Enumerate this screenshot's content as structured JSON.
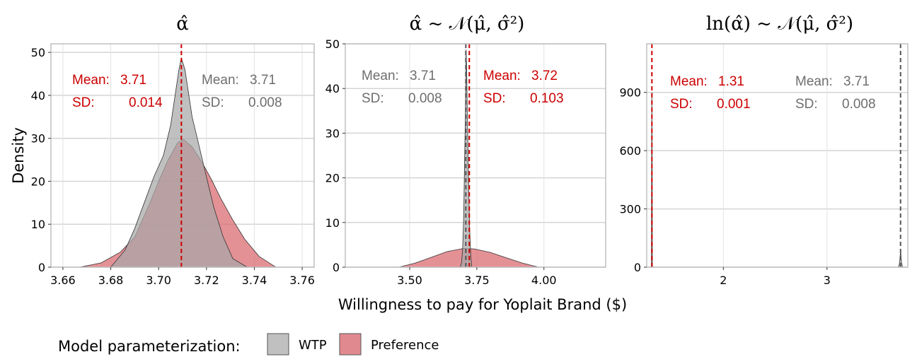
{
  "chart_data": [
    {
      "type": "area",
      "title": "α̂",
      "xlim": [
        3.655,
        3.765
      ],
      "ylim": [
        0,
        52
      ],
      "x_ticks": [
        3.66,
        3.68,
        3.7,
        3.72,
        3.74,
        3.76
      ],
      "x_tick_labels": [
        "3.66",
        "3.68",
        "3.70",
        "3.72",
        "3.74",
        "3.76"
      ],
      "y_ticks": [
        0,
        10,
        20,
        30,
        40,
        50
      ],
      "y_tick_labels": [
        "0",
        "10",
        "20",
        "30",
        "40",
        "50"
      ],
      "ylabel": "Density",
      "series": [
        {
          "name": "Preference",
          "fill": "#d9666e",
          "x": [
            3.667,
            3.676,
            3.684,
            3.69,
            3.696,
            3.7,
            3.704,
            3.708,
            3.7105,
            3.714,
            3.718,
            3.722,
            3.726,
            3.731,
            3.736,
            3.742,
            3.749
          ],
          "y": [
            0,
            1,
            3.5,
            7,
            14.5,
            20,
            25,
            29,
            29.7,
            28,
            24.5,
            20.5,
            16,
            11,
            6.5,
            2.5,
            0
          ],
          "mean_line_x": 3.7095
        },
        {
          "name": "WTP",
          "fill": "#a8a8a8",
          "x": [
            3.68,
            3.686,
            3.69,
            3.694,
            3.698,
            3.702,
            3.705,
            3.7085,
            3.7095,
            3.711,
            3.714,
            3.717,
            3.72,
            3.723,
            3.727,
            3.731,
            3.737
          ],
          "y": [
            0,
            4,
            9,
            15,
            21,
            26,
            33,
            46,
            48.7,
            46,
            35,
            28,
            21,
            14,
            7,
            2,
            0
          ]
        }
      ],
      "annotations": [
        {
          "mean_label": "Mean:",
          "mean_value": "3.71",
          "sd_label": "SD:",
          "sd_value": "0.014",
          "color": "#cc0000"
        },
        {
          "mean_label": "Mean:",
          "mean_value": "3.71",
          "sd_label": "SD:",
          "sd_value": "0.008",
          "color": "#6e6e6e"
        }
      ]
    },
    {
      "type": "area",
      "title": "α̂ ~ 𝒩(μ̂, σ̂²)",
      "xlim": [
        3.26,
        4.23
      ],
      "ylim": [
        0,
        50
      ],
      "x_ticks": [
        3.5,
        3.75,
        4.0
      ],
      "x_tick_labels": [
        "3.50",
        "3.75",
        "4.00"
      ],
      "y_ticks": [
        0,
        10,
        20,
        30,
        40,
        50
      ],
      "y_tick_labels": [
        "0",
        "10",
        "20",
        "30",
        "40",
        "50"
      ],
      "series": [
        {
          "name": "Preference",
          "fill": "#d9666e",
          "x": [
            3.46,
            3.52,
            3.58,
            3.64,
            3.7,
            3.74,
            3.8,
            3.86,
            3.92,
            3.98
          ],
          "y": [
            0,
            0.9,
            2.2,
            3.5,
            4.2,
            4.1,
            3.3,
            2.1,
            0.9,
            0
          ],
          "mean_line_x": 3.722
        },
        {
          "name": "WTP",
          "fill": "#a8a8a8",
          "x": [
            3.688,
            3.693,
            3.697,
            3.701,
            3.704,
            3.707,
            3.709,
            3.71,
            3.712,
            3.715,
            3.719,
            3.723,
            3.727,
            3.731
          ],
          "y": [
            0,
            1,
            4,
            11,
            22,
            33,
            42,
            48.7,
            45,
            33,
            20,
            9,
            3,
            0
          ],
          "mean_line_x": 3.709
        }
      ],
      "annotations": [
        {
          "mean_label": "Mean:",
          "mean_value": "3.71",
          "sd_label": "SD:",
          "sd_value": "0.008",
          "color": "#6e6e6e"
        },
        {
          "mean_label": "Mean:",
          "mean_value": "3.72",
          "sd_label": "SD:",
          "sd_value": "0.103",
          "color": "#cc0000"
        }
      ]
    },
    {
      "type": "area",
      "title": "ln(α̂) ~ 𝒩(μ̂, σ̂²)",
      "xlim": [
        1.26,
        3.78
      ],
      "ylim": [
        0,
        1150
      ],
      "x_ticks": [
        2,
        3
      ],
      "x_tick_labels": [
        "2",
        "3"
      ],
      "y_ticks": [
        0,
        300,
        600,
        900
      ],
      "y_tick_labels": [
        "0",
        "300",
        "600",
        "900"
      ],
      "series": [
        {
          "name": "Preference",
          "fill": "#d9666e",
          "x": [
            1.305,
            1.31,
            1.315
          ],
          "y": [
            0,
            900,
            0
          ],
          "mean_line_x": 1.31
        },
        {
          "name": "WTP",
          "fill": "#a8a8a8",
          "x": [
            3.69,
            3.7,
            3.71,
            3.72,
            3.73
          ],
          "y": [
            0,
            20,
            85,
            20,
            0
          ],
          "mean_line_x": 3.71
        }
      ],
      "annotations": [
        {
          "mean_label": "Mean:",
          "mean_value": "1.31",
          "sd_label": "SD:",
          "sd_value": "0.001",
          "color": "#cc0000"
        },
        {
          "mean_label": "Mean:",
          "mean_value": "3.71",
          "sd_label": "SD:",
          "sd_value": "0.008",
          "color": "#6e6e6e"
        }
      ]
    }
  ],
  "xlabel": "Willingness to pay for Yoplait Brand ($)",
  "legend": {
    "title": "Model parameterization:",
    "items": [
      {
        "label": "WTP",
        "color": "#a8a8a8"
      },
      {
        "label": "Preference",
        "color": "#e08a90"
      }
    ],
    "position": "bottom"
  },
  "colors": {
    "preference": "#d9666e",
    "wtp": "#a8a8a8",
    "mean_pref": "#cc0000",
    "mean_wtp": "#555555",
    "grid": "#d4d4d4"
  }
}
